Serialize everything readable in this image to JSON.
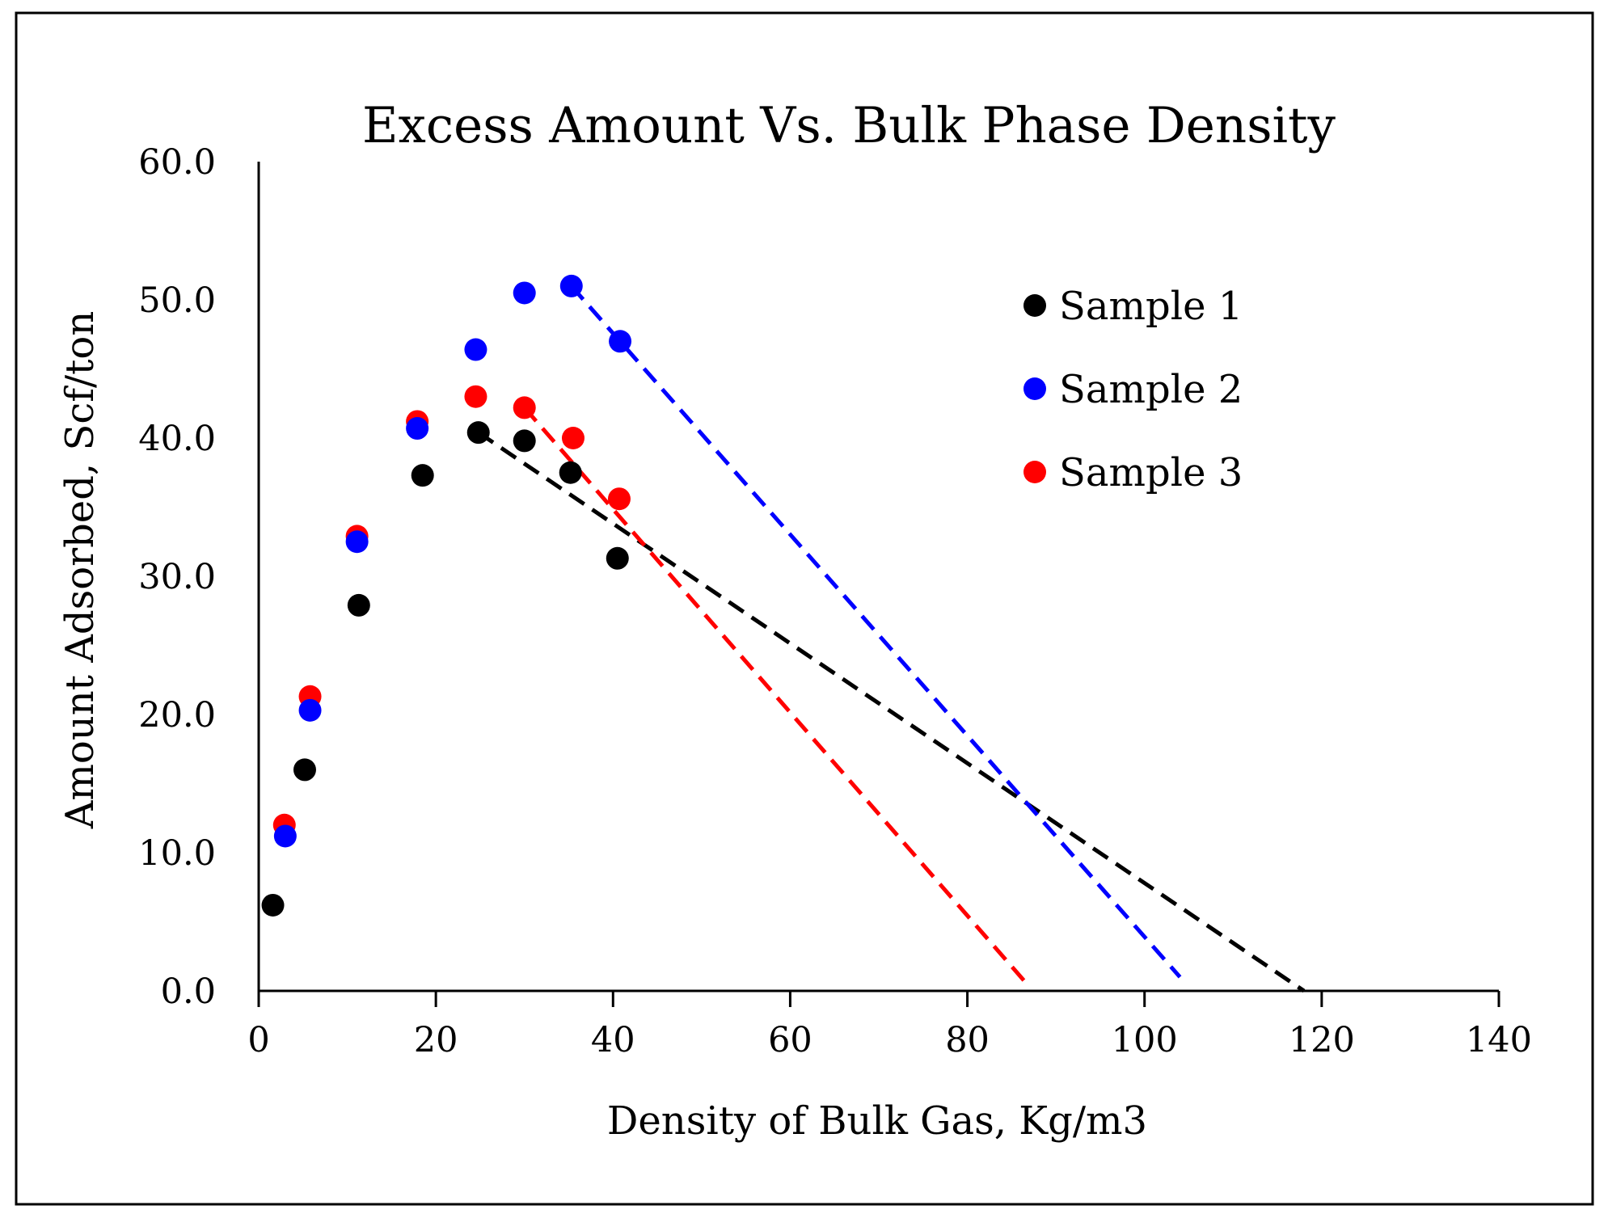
{
  "chart_data": {
    "type": "scatter",
    "title": "Excess Amount Vs. Bulk Phase Density",
    "xlabel": "Density of Bulk Gas, Kg/m3",
    "ylabel": "Amount Adsorbed, Scf/ton",
    "xlim": [
      0,
      140
    ],
    "ylim": [
      0,
      60
    ],
    "xticks": [
      0,
      20,
      40,
      60,
      80,
      100,
      120,
      140
    ],
    "xtick_labels": [
      "0",
      "20",
      "40",
      "60",
      "80",
      "100",
      "120",
      "140"
    ],
    "yticks": [
      0,
      10,
      20,
      30,
      40,
      50,
      60
    ],
    "ytick_labels": [
      "0.0",
      "10.0",
      "20.0",
      "30.0",
      "40.0",
      "50.0",
      "60.0"
    ],
    "grid": false,
    "legend_position": "top-right",
    "series": [
      {
        "name": "Sample 1",
        "color": "#000000",
        "x": [
          1.6,
          5.2,
          11.3,
          18.5,
          24.8,
          30.0,
          35.2,
          40.5
        ],
        "y": [
          6.2,
          16.0,
          27.9,
          37.3,
          40.4,
          39.8,
          37.5,
          31.3
        ],
        "trendline": {
          "x": [
            24.8,
            118.0
          ],
          "y": [
            40.4,
            0.0
          ],
          "style": "dashed"
        }
      },
      {
        "name": "Sample 2",
        "color": "#0000ff",
        "x": [
          3.0,
          5.8,
          11.1,
          17.9,
          24.5,
          30.0,
          35.3,
          40.8
        ],
        "y": [
          11.2,
          20.3,
          32.5,
          40.7,
          46.4,
          50.5,
          51.0,
          47.0
        ],
        "trendline": {
          "x": [
            35.3,
            104.0
          ],
          "y": [
            51.0,
            1.0
          ],
          "style": "dashed"
        }
      },
      {
        "name": "Sample 3",
        "color": "#ff0000",
        "x": [
          2.9,
          5.8,
          11.1,
          17.9,
          24.5,
          30.0,
          35.5,
          40.7
        ],
        "y": [
          12.0,
          21.3,
          32.9,
          41.2,
          43.0,
          42.2,
          40.0,
          35.6
        ],
        "trendline": {
          "x": [
            30.0,
            87.0
          ],
          "y": [
            42.2,
            0.3
          ],
          "style": "dashed"
        }
      }
    ]
  }
}
